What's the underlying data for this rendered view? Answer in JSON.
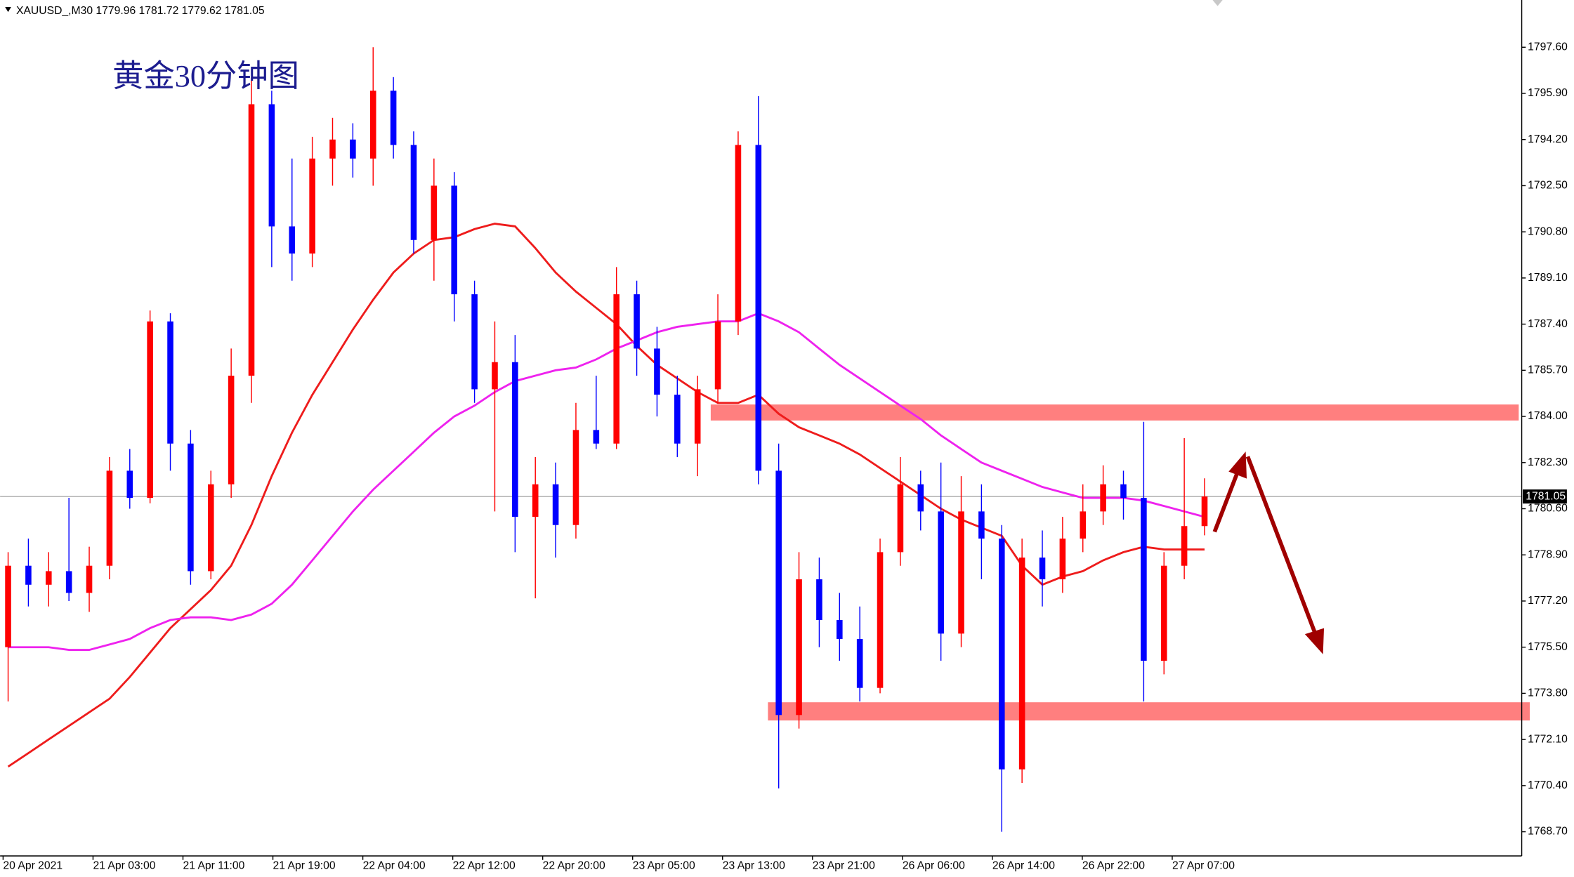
{
  "chart_data": {
    "type": "candlestick",
    "header": "XAUUSD_,M30  1779.96 1781.72 1779.62 1781.05",
    "title": "黄金30分钟图",
    "up_color": "#ff0000",
    "down_color": "#0000ff",
    "open": [
      1775.5,
      1778.5,
      1777.8,
      1778.3,
      1777.5,
      1778.5,
      1782.0,
      1781.0,
      1787.5,
      1783.0,
      1778.3,
      1781.5,
      1785.5,
      1795.5,
      1791.0,
      1790.0,
      1793.5,
      1794.2,
      1793.5,
      1796.0,
      1794.0,
      1790.5,
      1792.5,
      1788.5,
      1785.0,
      1786.0,
      1780.3,
      1781.5,
      1780.0,
      1783.5,
      1783.0,
      1788.5,
      1786.5,
      1784.8,
      1783.0,
      1785.0,
      1787.5,
      1794.0,
      1782.0,
      1773.0,
      1778.0,
      1776.5,
      1775.8,
      1774.0,
      1779.0,
      1781.5,
      1780.5,
      1776.0,
      1780.5,
      1779.5,
      1771.0,
      1778.8,
      1778.0,
      1779.5,
      1780.5,
      1781.5,
      1781.0,
      1775.0,
      1778.5,
      1779.96
    ],
    "high": [
      1779.0,
      1779.5,
      1779.0,
      1781.0,
      1779.2,
      1782.5,
      1782.8,
      1787.9,
      1787.8,
      1783.5,
      1782.0,
      1786.5,
      1796.5,
      1796.0,
      1793.5,
      1794.3,
      1795.0,
      1794.8,
      1797.6,
      1796.5,
      1794.5,
      1793.5,
      1793.0,
      1789.0,
      1787.5,
      1787.0,
      1782.5,
      1782.3,
      1784.5,
      1785.5,
      1789.5,
      1789.0,
      1787.3,
      1785.5,
      1785.5,
      1788.5,
      1794.5,
      1795.8,
      1783.0,
      1779.0,
      1778.8,
      1777.5,
      1777.0,
      1779.5,
      1782.5,
      1782.0,
      1782.3,
      1781.8,
      1781.5,
      1780.0,
      1779.5,
      1779.8,
      1780.3,
      1781.5,
      1782.2,
      1782.0,
      1783.8,
      1779.0,
      1783.2,
      1781.72
    ],
    "low": [
      1773.5,
      1777.0,
      1777.0,
      1777.2,
      1776.8,
      1778.0,
      1780.6,
      1780.8,
      1782.0,
      1777.8,
      1778.0,
      1781.0,
      1784.5,
      1789.5,
      1789.0,
      1789.5,
      1792.5,
      1792.8,
      1792.5,
      1793.5,
      1790.0,
      1789.0,
      1787.5,
      1784.5,
      1780.5,
      1779.0,
      1777.3,
      1778.8,
      1779.5,
      1782.8,
      1782.8,
      1785.5,
      1784.0,
      1782.5,
      1781.8,
      1784.5,
      1787.0,
      1781.5,
      1770.3,
      1772.5,
      1775.5,
      1775.0,
      1773.5,
      1773.8,
      1778.5,
      1779.8,
      1775.0,
      1775.5,
      1778.0,
      1768.7,
      1770.5,
      1777.0,
      1777.5,
      1779.0,
      1780.0,
      1780.2,
      1773.5,
      1774.5,
      1778.0,
      1779.62
    ],
    "close": [
      1778.5,
      1777.8,
      1778.3,
      1777.5,
      1778.5,
      1782.0,
      1781.0,
      1787.5,
      1783.0,
      1778.3,
      1781.5,
      1785.5,
      1795.5,
      1791.0,
      1790.0,
      1793.5,
      1794.2,
      1793.5,
      1796.0,
      1794.0,
      1790.5,
      1792.5,
      1788.5,
      1785.0,
      1786.0,
      1780.3,
      1781.5,
      1780.0,
      1783.5,
      1783.0,
      1788.5,
      1786.5,
      1784.8,
      1783.0,
      1785.0,
      1787.5,
      1794.0,
      1782.0,
      1773.0,
      1778.0,
      1776.5,
      1775.8,
      1774.0,
      1779.0,
      1781.5,
      1780.5,
      1776.0,
      1780.5,
      1779.5,
      1771.0,
      1778.8,
      1778.0,
      1779.5,
      1780.5,
      1781.5,
      1781.0,
      1775.0,
      1778.5,
      1779.96,
      1781.05
    ],
    "lines": [
      {
        "color": "#ee1c1c",
        "values": [
          1771.1,
          1771.6,
          1772.1,
          1772.6,
          1773.1,
          1773.6,
          1774.4,
          1775.3,
          1776.2,
          1776.9,
          1777.6,
          1778.5,
          1780.0,
          1781.8,
          1783.4,
          1784.8,
          1786.0,
          1787.2,
          1788.3,
          1789.3,
          1790.0,
          1790.5,
          1790.6,
          1790.9,
          1791.1,
          1791.0,
          1790.2,
          1789.3,
          1788.6,
          1788.0,
          1787.4,
          1786.6,
          1785.9,
          1785.4,
          1784.9,
          1784.5,
          1784.5,
          1784.8,
          1784.1,
          1783.6,
          1783.3,
          1783.0,
          1782.6,
          1782.1,
          1781.6,
          1781.1,
          1780.6,
          1780.2,
          1779.9,
          1779.6,
          1778.5,
          1777.8,
          1778.1,
          1778.3,
          1778.7,
          1779.0,
          1779.2,
          1779.1,
          1779.1,
          1779.1
        ]
      },
      {
        "color": "#ee22ee",
        "values": [
          1775.5,
          1775.5,
          1775.5,
          1775.4,
          1775.4,
          1775.6,
          1775.8,
          1776.2,
          1776.5,
          1776.6,
          1776.6,
          1776.5,
          1776.7,
          1777.1,
          1777.8,
          1778.7,
          1779.6,
          1780.5,
          1781.3,
          1782.0,
          1782.7,
          1783.4,
          1784.0,
          1784.4,
          1784.9,
          1785.3,
          1785.5,
          1785.7,
          1785.8,
          1786.1,
          1786.5,
          1786.8,
          1787.1,
          1787.3,
          1787.4,
          1787.5,
          1787.5,
          1787.8,
          1787.5,
          1787.1,
          1786.5,
          1785.9,
          1785.4,
          1784.9,
          1784.4,
          1783.9,
          1783.3,
          1782.8,
          1782.3,
          1782.0,
          1781.7,
          1781.4,
          1781.2,
          1781.0,
          1781.0,
          1781.0,
          1780.9,
          1780.7,
          1780.5,
          1780.3
        ]
      }
    ],
    "zones": [
      {
        "top": 1784.44,
        "bottom": 1783.85,
        "color": "#ff7f7f"
      },
      {
        "top": 1773.47,
        "bottom": 1772.8,
        "color": "#ff7f7f"
      }
    ],
    "current_price": {
      "value": 1781.05,
      "label": "1781.05"
    },
    "ylim": [
      1767.81,
      1799.34
    ],
    "yticks": [
      {
        "value": 1797.6,
        "label": "1797.60"
      },
      {
        "value": 1795.9,
        "label": "1795.90"
      },
      {
        "value": 1794.2,
        "label": "1794.20"
      },
      {
        "value": 1792.5,
        "label": "1792.50"
      },
      {
        "value": 1790.8,
        "label": "1790.80"
      },
      {
        "value": 1789.1,
        "label": "1789.10"
      },
      {
        "value": 1787.4,
        "label": "1787.40"
      },
      {
        "value": 1785.7,
        "label": "1785.70"
      },
      {
        "value": 1784.0,
        "label": "1784.00"
      },
      {
        "value": 1782.3,
        "label": "1782.30"
      },
      {
        "value": 1780.6,
        "label": "1780.60"
      },
      {
        "value": 1778.9,
        "label": "1778.90"
      },
      {
        "value": 1777.2,
        "label": "1777.20"
      },
      {
        "value": 1775.5,
        "label": "1775.50"
      },
      {
        "value": 1773.8,
        "label": "1773.80"
      },
      {
        "value": 1772.1,
        "label": "1772.10"
      },
      {
        "value": 1770.4,
        "label": "1770.40"
      },
      {
        "value": 1768.7,
        "label": "1768.70"
      }
    ],
    "xlabels": [
      "20 Apr 2021",
      "21 Apr 03:00",
      "21 Apr 11:00",
      "21 Apr 19:00",
      "22 Apr 04:00",
      "22 Apr 12:00",
      "22 Apr 20:00",
      "23 Apr 05:00",
      "23 Apr 13:00",
      "23 Apr 21:00",
      "26 Apr 06:00",
      "26 Apr 14:00",
      "26 Apr 22:00",
      "27 Apr 07:00"
    ]
  }
}
